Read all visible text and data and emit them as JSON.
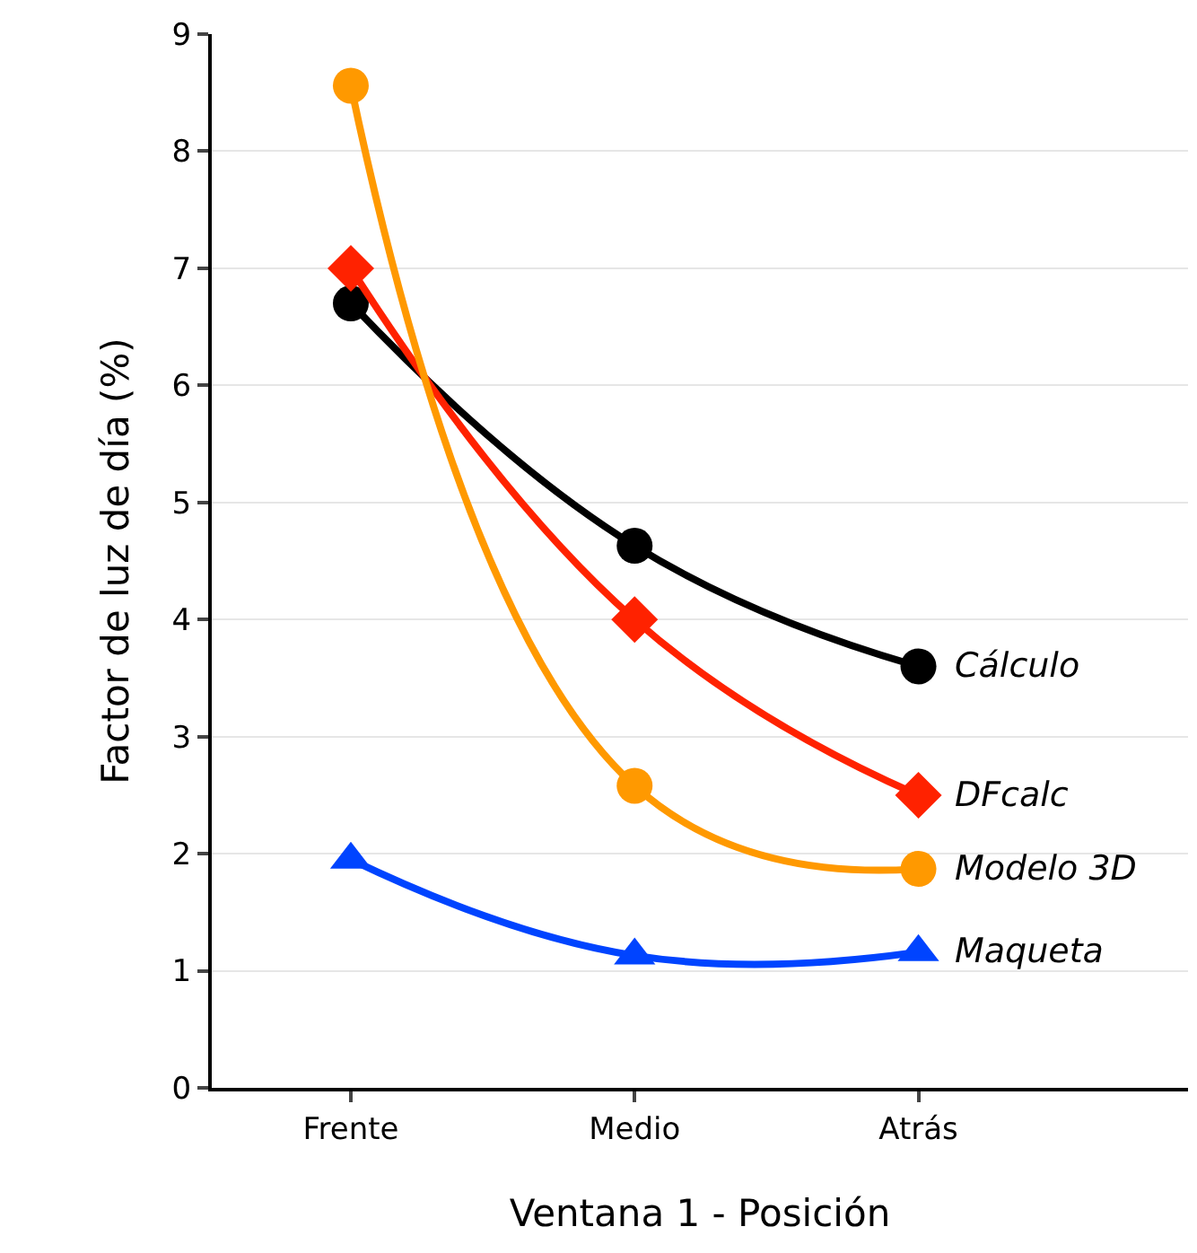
{
  "chart_data": {
    "type": "line",
    "xlabel": "Ventana 1 - Posición",
    "ylabel": "Factor de luz de día (%)",
    "categories": [
      "Frente",
      "Medio",
      "Atrás"
    ],
    "series": [
      {
        "name": "Cálculo",
        "color": "#000000",
        "marker": "circle",
        "values": [
          6.7,
          4.63,
          3.6
        ]
      },
      {
        "name": "DFcalc",
        "color": "#ff2200",
        "marker": "diamond",
        "values": [
          7.0,
          4.0,
          2.5
        ]
      },
      {
        "name": "Modelo 3D",
        "color": "#ff9900",
        "marker": "circle",
        "values": [
          8.56,
          2.58,
          1.87
        ]
      },
      {
        "name": "Maqueta",
        "color": "#0044ff",
        "marker": "triangle",
        "values": [
          1.95,
          1.13,
          1.16
        ]
      }
    ],
    "ylim": [
      0,
      9
    ],
    "yticks": [
      0,
      1,
      2,
      3,
      4,
      5,
      6,
      7,
      8,
      9
    ],
    "grid": "y",
    "legend": false
  }
}
